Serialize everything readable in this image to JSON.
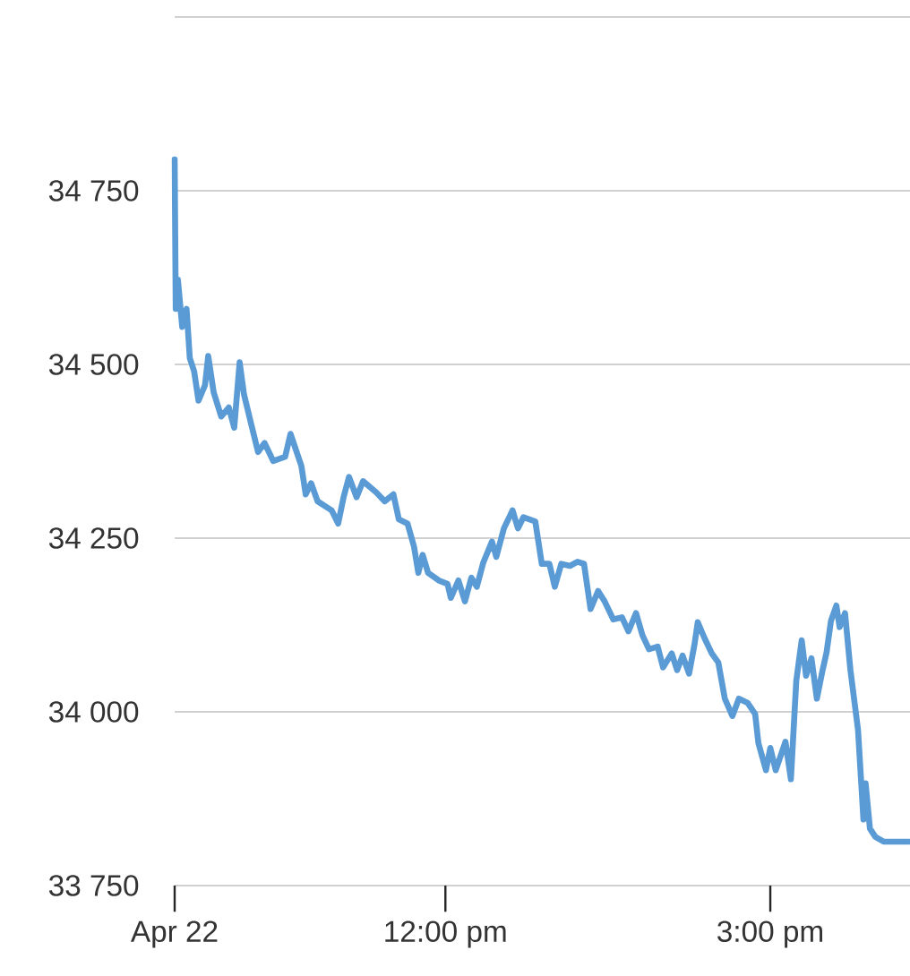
{
  "chart_data": {
    "type": "line",
    "color": "#5b9bd5",
    "grid": "y",
    "xlim": [
      9.5,
      16.29
    ],
    "ylim": [
      33750,
      35000
    ],
    "xticks": [
      {
        "value": 9.5,
        "label": "Apr 22"
      },
      {
        "value": 12,
        "label": "12:00 pm"
      },
      {
        "value": 15,
        "label": "3:00 pm"
      }
    ],
    "yticks": [
      {
        "value": 33750,
        "label": "33 750"
      },
      {
        "value": 34000,
        "label": "34 000"
      },
      {
        "value": 34250,
        "label": "34 250"
      },
      {
        "value": 34500,
        "label": "34 500"
      },
      {
        "value": 34750,
        "label": "34 750"
      },
      {
        "value": 35000,
        "label": null
      }
    ],
    "x": [
      9.5,
      9.51,
      9.53,
      9.57,
      9.61,
      9.64,
      9.68,
      9.72,
      9.78,
      9.81,
      9.86,
      9.93,
      10.0,
      10.05,
      10.1,
      10.14,
      10.21,
      10.27,
      10.33,
      10.41,
      10.52,
      10.57,
      10.67,
      10.71,
      10.76,
      10.82,
      10.95,
      11.01,
      11.06,
      11.11,
      11.18,
      11.24,
      11.36,
      11.44,
      11.52,
      11.57,
      11.65,
      11.71,
      11.75,
      11.79,
      11.84,
      11.94,
      12.02,
      12.05,
      12.12,
      12.18,
      12.24,
      12.29,
      12.35,
      12.43,
      12.47,
      12.54,
      12.62,
      12.67,
      12.72,
      12.83,
      12.89,
      12.96,
      13.01,
      13.07,
      13.15,
      13.22,
      13.28,
      13.34,
      13.41,
      13.47,
      13.55,
      13.63,
      13.69,
      13.76,
      13.82,
      13.88,
      13.96,
      14.01,
      14.09,
      14.14,
      14.19,
      14.25,
      14.3,
      14.33,
      14.39,
      14.46,
      14.52,
      14.58,
      14.65,
      14.71,
      14.79,
      14.86,
      14.89,
      14.96,
      15.0,
      15.05,
      15.14,
      15.19,
      15.24,
      15.29,
      15.33,
      15.38,
      15.43,
      15.48,
      15.52,
      15.56,
      15.61,
      15.64,
      15.69,
      15.74,
      15.81,
      15.86,
      15.88,
      15.92,
      15.97,
      16.05,
      16.29
    ],
    "values": [
      34795,
      34580,
      34622,
      34554,
      34580,
      34509,
      34490,
      34448,
      34470,
      34512,
      34460,
      34425,
      34438,
      34409,
      34503,
      34457,
      34412,
      34374,
      34387,
      34361,
      34367,
      34400,
      34354,
      34313,
      34329,
      34303,
      34290,
      34271,
      34309,
      34338,
      34309,
      34332,
      34316,
      34303,
      34313,
      34277,
      34271,
      34238,
      34200,
      34226,
      34200,
      34189,
      34184,
      34164,
      34189,
      34159,
      34193,
      34180,
      34215,
      34245,
      34223,
      34264,
      34290,
      34264,
      34280,
      34274,
      34213,
      34213,
      34180,
      34213,
      34210,
      34216,
      34213,
      34148,
      34174,
      34159,
      34133,
      34136,
      34116,
      34142,
      34110,
      34090,
      34094,
      34064,
      34084,
      34060,
      34081,
      34055,
      34097,
      34129,
      34107,
      34084,
      34071,
      34019,
      33994,
      34019,
      34013,
      33997,
      33955,
      33916,
      33948,
      33916,
      33957,
      33903,
      34045,
      34103,
      34052,
      34077,
      34019,
      34058,
      34086,
      34131,
      34153,
      34122,
      34142,
      34060,
      33974,
      33845,
      33897,
      33832,
      33820,
      33813,
      33813
    ]
  }
}
